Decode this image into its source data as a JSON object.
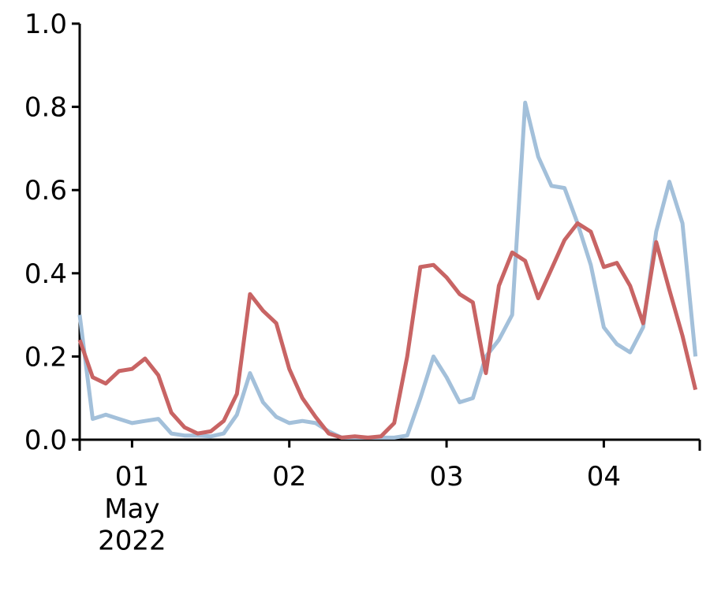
{
  "chart_data": {
    "type": "line",
    "x": [
      0.667,
      0.75,
      0.833,
      0.917,
      1,
      1.083,
      1.167,
      1.25,
      1.333,
      1.417,
      1.5,
      1.583,
      1.667,
      1.75,
      1.833,
      1.917,
      2,
      2.083,
      2.167,
      2.25,
      2.333,
      2.417,
      2.5,
      2.583,
      2.667,
      2.75,
      2.833,
      2.917,
      3,
      3.083,
      3.167,
      3.25,
      3.333,
      3.417,
      3.5,
      3.583,
      3.667,
      3.75,
      3.833,
      3.917,
      4,
      4.083,
      4.167,
      4.25,
      4.333,
      4.417,
      4.5,
      4.583
    ],
    "series": [
      {
        "color": "#a3c0da",
        "values": [
          0.3,
          0.05,
          0.06,
          0.05,
          0.04,
          0.045,
          0.05,
          0.015,
          0.01,
          0.01,
          0.008,
          0.015,
          0.06,
          0.16,
          0.09,
          0.055,
          0.04,
          0.045,
          0.04,
          0.02,
          0.005,
          0.005,
          0.005,
          0.005,
          0.005,
          0.01,
          0.1,
          0.2,
          0.15,
          0.09,
          0.1,
          0.2,
          0.24,
          0.3,
          0.81,
          0.68,
          0.61,
          0.605,
          0.52,
          0.42,
          0.27,
          0.23,
          0.21,
          0.27,
          0.5,
          0.62,
          0.52,
          0.2
        ]
      },
      {
        "color": "#c86464",
        "values": [
          0.24,
          0.15,
          0.135,
          0.165,
          0.17,
          0.195,
          0.155,
          0.065,
          0.03,
          0.015,
          0.02,
          0.045,
          0.11,
          0.35,
          0.31,
          0.28,
          0.17,
          0.1,
          0.055,
          0.015,
          0.005,
          0.008,
          0.005,
          0.008,
          0.04,
          0.2,
          0.415,
          0.42,
          0.39,
          0.35,
          0.33,
          0.16,
          0.37,
          0.45,
          0.43,
          0.34,
          0.41,
          0.48,
          0.52,
          0.5,
          0.415,
          0.425,
          0.37,
          0.28,
          0.475,
          0.36,
          0.25,
          0.12
        ]
      }
    ],
    "xlim": [
      0.667,
      4.61
    ],
    "xticks": [
      {
        "value": 1,
        "label": "01\nMay\n2022"
      },
      {
        "value": 2,
        "label": "02"
      },
      {
        "value": 3,
        "label": "03"
      },
      {
        "value": 4,
        "label": "04"
      }
    ],
    "ylim": [
      0,
      1
    ],
    "yticks": [
      {
        "value": 0,
        "label": "0.0"
      },
      0.2,
      0.4,
      0.6,
      0.8,
      {
        "value": 1,
        "label": "1.0"
      }
    ]
  }
}
